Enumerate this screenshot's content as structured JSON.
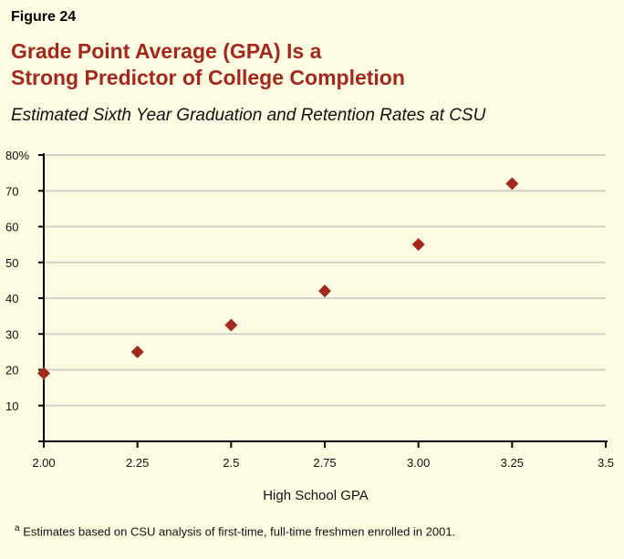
{
  "figure_label": "Figure 24",
  "title_line1": "Grade Point Average (GPA) Is a",
  "title_line2": "Strong Predictor of College Completion",
  "subtitle": "Estimated Sixth Year Graduation and Retention Rates at CSU",
  "footnote_marker": "a",
  "footnote": "Estimates based on CSU analysis of first-time, full-time freshmen enrolled in 2001.",
  "colors": {
    "title": "#a3291f",
    "marker": "#a3291f",
    "background": "#fdfbe1",
    "grid": "#d4d2c6"
  },
  "chart_data": {
    "type": "scatter",
    "xlabel": "High School GPA",
    "ylabel": "",
    "xlim": [
      2.0,
      3.5
    ],
    "ylim": [
      0,
      80
    ],
    "grid": true,
    "marker": "diamond",
    "x": [
      2.0,
      2.25,
      2.5,
      2.75,
      3.0,
      3.25
    ],
    "y": [
      19,
      25,
      32.5,
      42,
      55,
      72
    ],
    "x_tick_labels": [
      "2.00",
      "2.25",
      "2.5",
      "2.75",
      "3.00",
      "3.25",
      "3.5"
    ],
    "x_ticks": [
      2.0,
      2.25,
      2.5,
      2.75,
      3.0,
      3.25,
      3.5
    ],
    "y_ticks": [
      10,
      20,
      30,
      40,
      50,
      60,
      70,
      80
    ],
    "y_tick_labels": [
      "10",
      "20",
      "30",
      "40",
      "50",
      "60",
      "70",
      "80%"
    ]
  }
}
